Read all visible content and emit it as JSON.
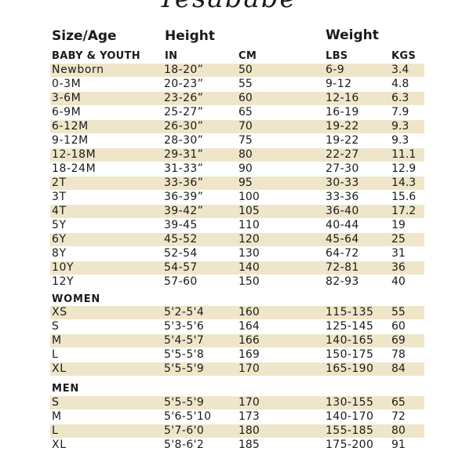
{
  "brand": "Yesababe",
  "headers": {
    "size": "Size/Age",
    "height": "Height",
    "weight": "Weight",
    "in": "IN",
    "cm": "CM",
    "lbs": "LBS",
    "kgs": "KGS"
  },
  "sections": {
    "baby": "BABY & YOUTH",
    "women": "WOMEN",
    "men": "MEN"
  },
  "rows": [
    {
      "size": "Newborn",
      "in": "18-20”",
      "cm": "50",
      "lbs": "6-9",
      "kgs": "3.4"
    },
    {
      "size": "0-3M",
      "in": "20-23”",
      "cm": "55",
      "lbs": "9-12",
      "kgs": "4.8"
    },
    {
      "size": "3-6M",
      "in": "23-26”",
      "cm": "60",
      "lbs": "12-16",
      "kgs": "6.3"
    },
    {
      "size": "6-9M",
      "in": "25-27”",
      "cm": "65",
      "lbs": "16-19",
      "kgs": "7.9"
    },
    {
      "size": "6-12M",
      "in": "26-30”",
      "cm": "70",
      "lbs": "19-22",
      "kgs": "9.3"
    },
    {
      "size": "9-12M",
      "in": "28-30”",
      "cm": "75",
      "lbs": "19-22",
      "kgs": "9.3"
    },
    {
      "size": "12-18M",
      "in": "29-31”",
      "cm": "80",
      "lbs": "22-27",
      "kgs": "11.1"
    },
    {
      "size": "18-24M",
      "in": "31-33”",
      "cm": "90",
      "lbs": "27-30",
      "kgs": "12.9"
    },
    {
      "size": "2T",
      "in": "33-36”",
      "cm": "95",
      "lbs": "30-33",
      "kgs": "14.3"
    },
    {
      "size": "3T",
      "in": "36-39”",
      "cm": "100",
      "lbs": "33-36",
      "kgs": "15.6"
    },
    {
      "size": "4T",
      "in": "39-42”",
      "cm": "105",
      "lbs": "36-40",
      "kgs": "17.2"
    },
    {
      "size": "5Y",
      "in": "39-45",
      "cm": "110",
      "lbs": "40-44",
      "kgs": "19"
    },
    {
      "size": "6Y",
      "in": "45-52",
      "cm": "120",
      "lbs": "45-64",
      "kgs": "25"
    },
    {
      "size": "8Y",
      "in": "52-54",
      "cm": "130",
      "lbs": "64-72",
      "kgs": "31"
    },
    {
      "size": "10Y",
      "in": "54-57",
      "cm": "140",
      "lbs": "72-81",
      "kgs": "36"
    },
    {
      "size": "12Y",
      "in": "57-60",
      "cm": "150",
      "lbs": "82-93",
      "kgs": "40"
    },
    {
      "size": "XS",
      "in": "5'2-5'4",
      "cm": "160",
      "lbs": "115-135",
      "kgs": "55"
    },
    {
      "size": "S",
      "in": "5'3-5'6",
      "cm": "164",
      "lbs": "125-145",
      "kgs": "60"
    },
    {
      "size": "M",
      "in": "5'4-5'7",
      "cm": "166",
      "lbs": "140-165",
      "kgs": "69"
    },
    {
      "size": "L",
      "in": "5'5-5'8",
      "cm": "169",
      "lbs": "150-175",
      "kgs": "78"
    },
    {
      "size": "XL",
      "in": "5'5-5'9",
      "cm": "170",
      "lbs": "165-190",
      "kgs": "84"
    },
    {
      "size": "S",
      "in": "5'5-5'9",
      "cm": "170",
      "lbs": "130-155",
      "kgs": "65"
    },
    {
      "size": "M",
      "in": "5'6-5'10",
      "cm": "173",
      "lbs": "140-170",
      "kgs": "72"
    },
    {
      "size": "L",
      "in": "5'7-6'0",
      "cm": "180",
      "lbs": "155-185",
      "kgs": "80"
    },
    {
      "size": "XL",
      "in": "5'8-6'2",
      "cm": "185",
      "lbs": "175-200",
      "kgs": "91"
    }
  ]
}
